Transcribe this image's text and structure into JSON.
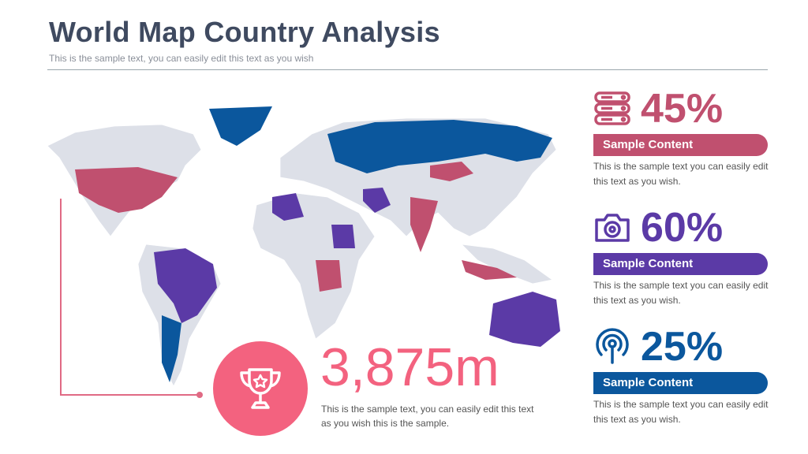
{
  "header": {
    "title": "World Map Country Analysis",
    "subtitle": "This is the sample text, you can easily edit this text as you wish"
  },
  "colors": {
    "pink": "#c0506f",
    "purple": "#5b3aa6",
    "blue": "#0b579d",
    "coral": "#f3627f",
    "land": "#dde0e8"
  },
  "highlight": {
    "value": "3,875m",
    "description": "This is the sample text, you can easily edit this text as you wish this is the sample.",
    "icon": "trophy-icon"
  },
  "stats": [
    {
      "percent": "45%",
      "label": "Sample Content",
      "description": "This is the sample text you can easily edit this text as you wish.",
      "icon": "server-icon",
      "color": "#c0506f"
    },
    {
      "percent": "60%",
      "label": "Sample Content",
      "description": "This is the sample text you can easily edit this text as you wish.",
      "icon": "camera-icon",
      "color": "#5b3aa6"
    },
    {
      "percent": "25%",
      "label": "Sample Content",
      "description": "This is the sample text you can easily edit this text as you wish.",
      "icon": "broadcast-icon",
      "color": "#0b579d"
    }
  ]
}
